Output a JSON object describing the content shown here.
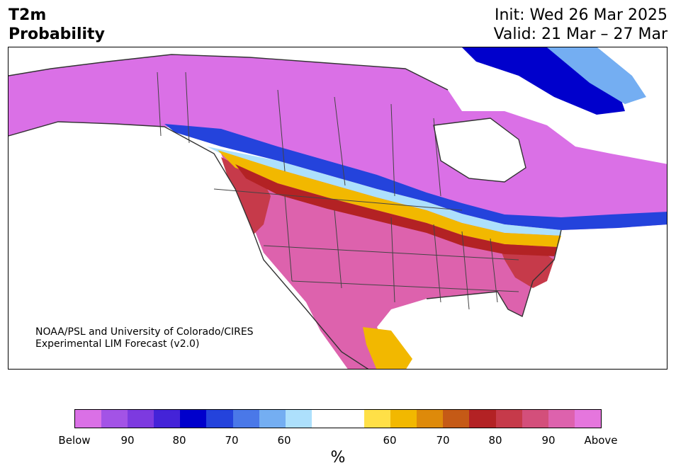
{
  "header": {
    "title_line1": "T2m",
    "title_line2": "Probability",
    "init": "Init: Wed 26 Mar 2025",
    "valid": "Valid: 21 Mar – 27 Mar"
  },
  "credit": {
    "line1": "NOAA/PSL and University of Colorado/CIRES",
    "line2": "Experimental LIM Forecast (v2.0)"
  },
  "colorbar": {
    "colors": [
      "#da70e6",
      "#a353e6",
      "#7d3ae0",
      "#4423d8",
      "#0000cc",
      "#2443dc",
      "#4a78e8",
      "#74aef2",
      "#ade0fc",
      "#ffffff",
      "#ffffff",
      "#ffe047",
      "#f2b800",
      "#de8a0a",
      "#c55a16",
      "#b32224",
      "#c63a4a",
      "#d34f7b",
      "#dd62ad",
      "#e576dd"
    ],
    "tick_labels": [
      "Below",
      "90",
      "80",
      "70",
      "60",
      "60",
      "70",
      "80",
      "90",
      "Above"
    ],
    "unit": "%"
  },
  "legend_colors": {
    "below_deep": "#da70e6",
    "below_strong": "#0000cc",
    "above_strong": "#b32224",
    "above_deep": "#dd62ad"
  }
}
